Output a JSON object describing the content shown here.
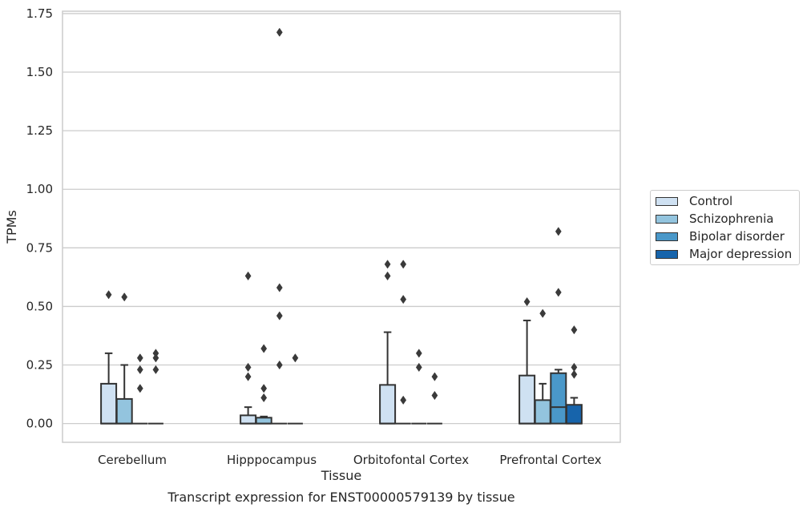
{
  "chart_data": {
    "type": "box",
    "title": "",
    "caption": "Transcript expression for ENST00000579139 by tissue",
    "xlabel": "Tissue",
    "ylabel": "TPMs",
    "ylim": [
      -0.08,
      1.76
    ],
    "yticks": [
      0.0,
      0.25,
      0.5,
      0.75,
      1.0,
      1.25,
      1.5,
      1.75
    ],
    "ytick_labels": [
      "0.00",
      "0.25",
      "0.50",
      "0.75",
      "1.00",
      "1.25",
      "1.50",
      "1.75"
    ],
    "grid": "horizontal",
    "legend_position": "right",
    "categories": [
      "Cerebellum",
      "Hipppocampus",
      "Orbitofontal Cortex",
      "Prefrontal Cortex"
    ],
    "series": [
      {
        "name": "Control",
        "color": "#cfe1f2",
        "boxes": [
          {
            "q1": 0,
            "median": 0,
            "q3": 0.17,
            "whisker_low": 0,
            "whisker_high": 0.3,
            "outliers": [
              0.55
            ]
          },
          {
            "q1": 0,
            "median": 0,
            "q3": 0.035,
            "whisker_low": 0,
            "whisker_high": 0.07,
            "outliers": [
              0.63,
              0.24,
              0.2
            ]
          },
          {
            "q1": 0,
            "median": 0,
            "q3": 0.165,
            "whisker_low": 0,
            "whisker_high": 0.39,
            "outliers": [
              0.68,
              0.63
            ]
          },
          {
            "q1": 0,
            "median": 0,
            "q3": 0.205,
            "whisker_low": 0,
            "whisker_high": 0.44,
            "outliers": [
              0.52
            ]
          }
        ]
      },
      {
        "name": "Schizophrenia",
        "color": "#93c4de",
        "boxes": [
          {
            "q1": 0,
            "median": 0,
            "q3": 0.105,
            "whisker_low": 0,
            "whisker_high": 0.25,
            "outliers": [
              0.54
            ]
          },
          {
            "q1": 0,
            "median": 0,
            "q3": 0.025,
            "whisker_low": 0,
            "whisker_high": 0.03,
            "outliers": [
              0.32,
              0.15,
              0.11
            ]
          },
          {
            "q1": 0,
            "median": 0,
            "q3": 0,
            "whisker_low": 0,
            "whisker_high": 0,
            "outliers": [
              0.68,
              0.53,
              0.1
            ]
          },
          {
            "q1": 0,
            "median": 0,
            "q3": 0.1,
            "whisker_low": 0,
            "whisker_high": 0.17,
            "outliers": [
              0.47
            ]
          }
        ]
      },
      {
        "name": "Bipolar disorder",
        "color": "#4a98c9",
        "boxes": [
          {
            "q1": 0,
            "median": 0,
            "q3": 0,
            "whisker_low": 0,
            "whisker_high": 0,
            "outliers": [
              0.28,
              0.23,
              0.15
            ]
          },
          {
            "q1": 0,
            "median": 0,
            "q3": 0,
            "whisker_low": 0,
            "whisker_high": 0,
            "outliers": [
              0.58,
              0.46,
              0.25,
              1.67
            ]
          },
          {
            "q1": 0,
            "median": 0,
            "q3": 0,
            "whisker_low": 0,
            "whisker_high": 0,
            "outliers": [
              0.3,
              0.24
            ]
          },
          {
            "q1": 0,
            "median": 0.07,
            "q3": 0.215,
            "whisker_low": 0,
            "whisker_high": 0.23,
            "outliers": [
              0.82,
              0.56
            ]
          }
        ]
      },
      {
        "name": "Major depression",
        "color": "#1764ab",
        "boxes": [
          {
            "q1": 0,
            "median": 0,
            "q3": 0,
            "whisker_low": 0,
            "whisker_high": 0,
            "outliers": [
              0.3,
              0.28,
              0.23
            ]
          },
          {
            "q1": 0,
            "median": 0,
            "q3": 0,
            "whisker_low": 0,
            "whisker_high": 0,
            "outliers": [
              0.28
            ]
          },
          {
            "q1": 0,
            "median": 0,
            "q3": 0,
            "whisker_low": 0,
            "whisker_high": 0,
            "outliers": [
              0.2,
              0.12
            ]
          },
          {
            "q1": 0,
            "median": 0,
            "q3": 0.08,
            "whisker_low": 0,
            "whisker_high": 0.11,
            "outliers": [
              0.4,
              0.24,
              0.21
            ]
          }
        ]
      }
    ]
  }
}
